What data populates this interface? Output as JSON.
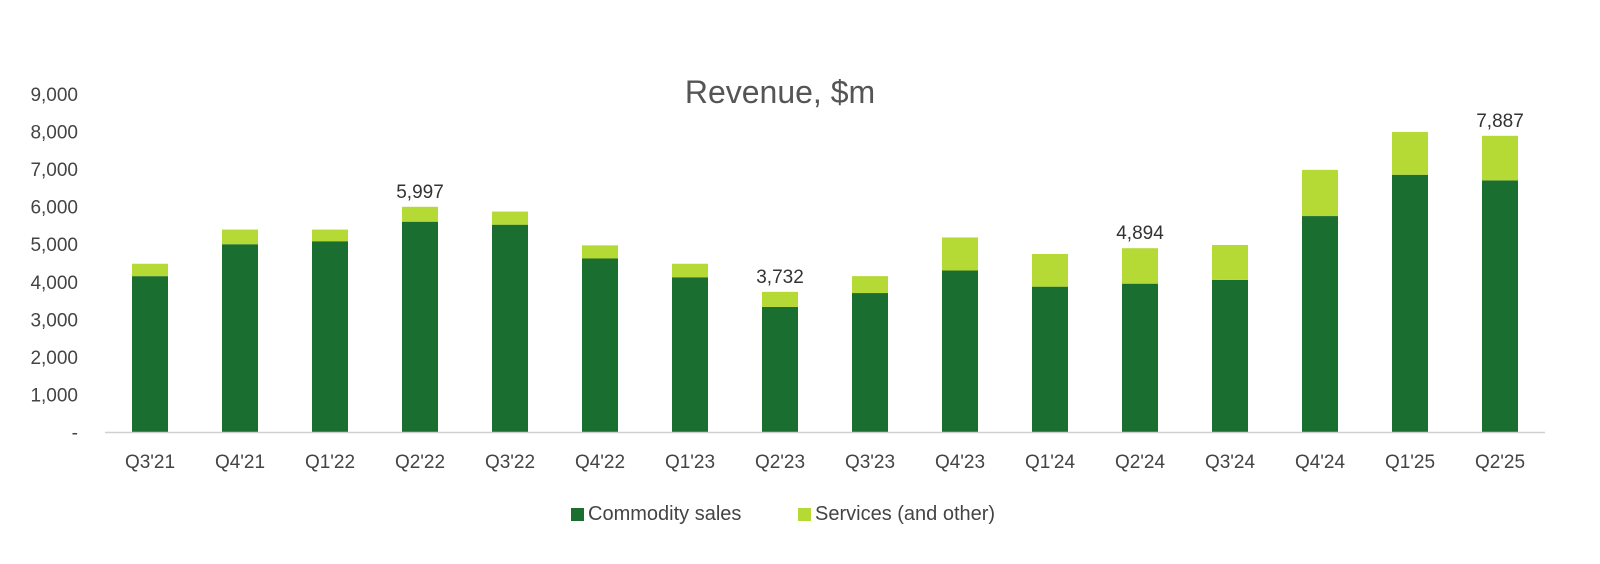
{
  "chart_data": {
    "type": "bar",
    "stacked": true,
    "title": "Revenue, $m",
    "xlabel": "",
    "ylabel": "",
    "ylim": [
      0,
      9000
    ],
    "yticks": [
      0,
      1000,
      2000,
      3000,
      4000,
      5000,
      6000,
      7000,
      8000,
      9000
    ],
    "ytick_labels": [
      "-",
      "1,000",
      "2,000",
      "3,000",
      "4,000",
      "5,000",
      "6,000",
      "7,000",
      "8,000",
      "9,000"
    ],
    "grid": false,
    "legend_position": "bottom-center",
    "categories": [
      "Q3'21",
      "Q4'21",
      "Q1'22",
      "Q2'22",
      "Q3'22",
      "Q4'22",
      "Q1'23",
      "Q2'23",
      "Q3'23",
      "Q4'23",
      "Q1'24",
      "Q2'24",
      "Q3'24",
      "Q4'24",
      "Q1'25",
      "Q2'25"
    ],
    "series": [
      {
        "name": "Commodity sales",
        "color": "#1a6e2f",
        "values": [
          4150,
          5000,
          5080,
          5600,
          5520,
          4620,
          4120,
          3330,
          3700,
          4300,
          3870,
          3950,
          4050,
          5750,
          6850,
          6700
        ]
      },
      {
        "name": "Services (and other)",
        "color": "#b5d935",
        "values": [
          330,
          390,
          310,
          397,
          350,
          350,
          360,
          402,
          450,
          880,
          870,
          944,
          930,
          1230,
          1140,
          1187
        ]
      }
    ],
    "data_labels": [
      {
        "category": "Q2'22",
        "text": "5,997"
      },
      {
        "category": "Q2'23",
        "text": "3,732"
      },
      {
        "category": "Q2'24",
        "text": "4,894"
      },
      {
        "category": "Q2'25",
        "text": "7,887"
      }
    ]
  }
}
